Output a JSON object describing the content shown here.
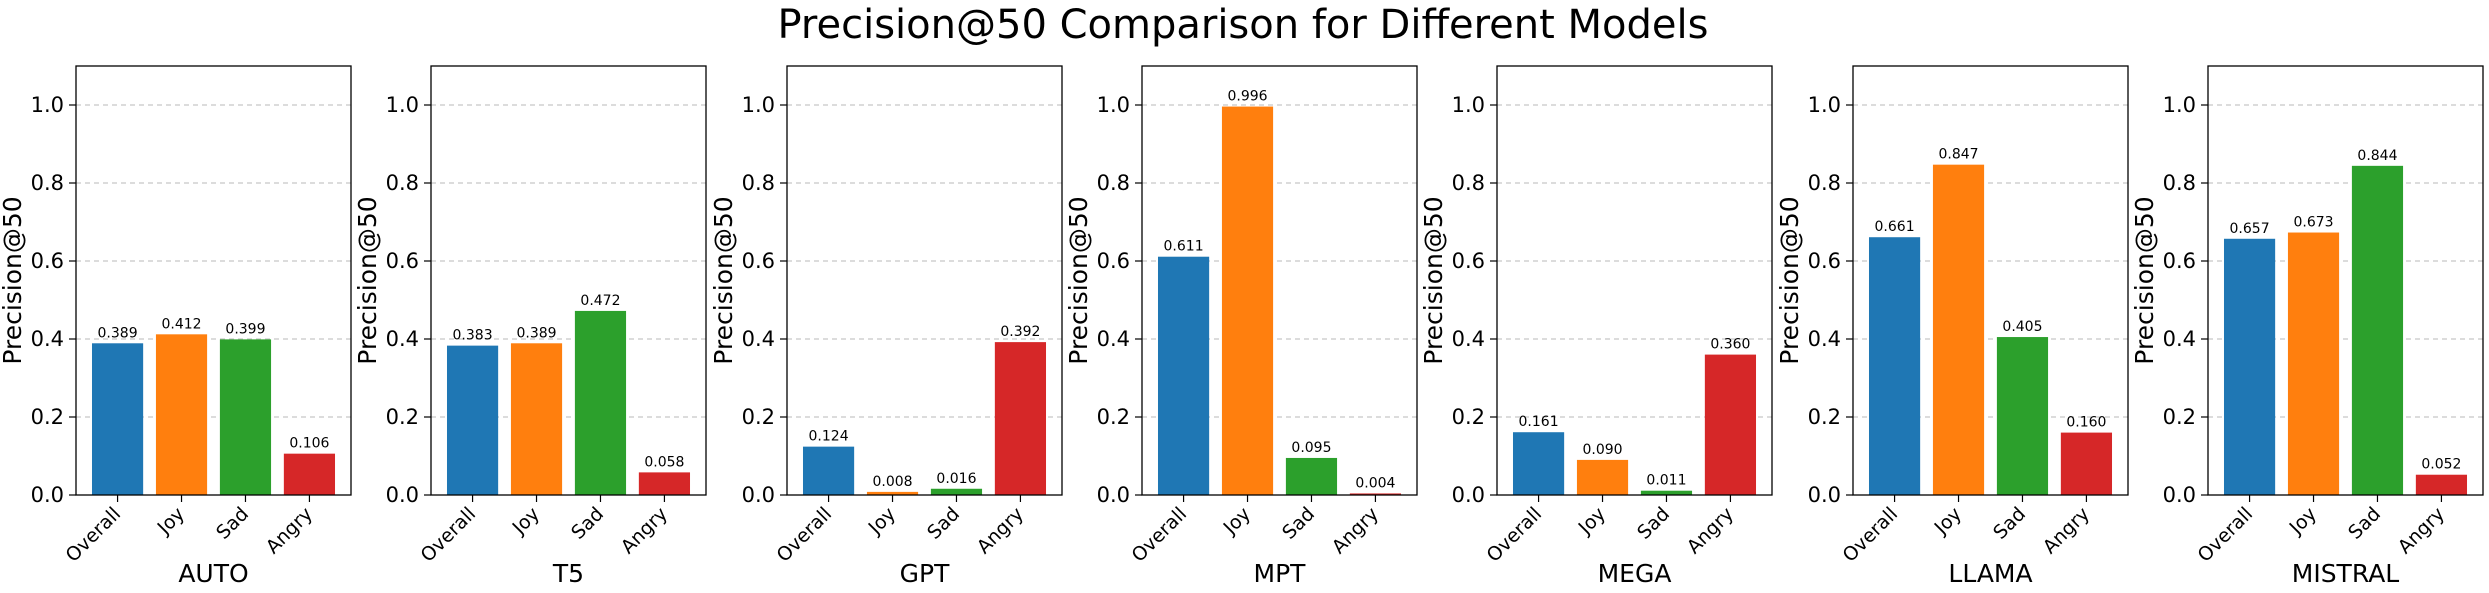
{
  "title": "Precision@50 Comparison for Different Models",
  "colors": {
    "Overall": "#1f77b4",
    "Joy": "#ff7f0e",
    "Sad": "#2ca02c",
    "Angry": "#d62728"
  },
  "chart_data": [
    {
      "type": "bar",
      "title": "",
      "xlabel": "AUTO",
      "ylabel": "Precision@50",
      "ylim": [
        0,
        1.1
      ],
      "yticks": [
        "0.0",
        "0.2",
        "0.4",
        "0.6",
        "0.8",
        "1.0"
      ],
      "grid": "y-dashed",
      "categories": [
        "Overall",
        "Joy",
        "Sad",
        "Angry"
      ],
      "values": [
        0.389,
        0.412,
        0.399,
        0.106
      ],
      "labels": [
        "0.389",
        "0.412",
        "0.399",
        "0.106"
      ]
    },
    {
      "type": "bar",
      "title": "",
      "xlabel": "T5",
      "ylabel": "Precision@50",
      "ylim": [
        0,
        1.1
      ],
      "yticks": [
        "0.0",
        "0.2",
        "0.4",
        "0.6",
        "0.8",
        "1.0"
      ],
      "grid": "y-dashed",
      "categories": [
        "Overall",
        "Joy",
        "Sad",
        "Angry"
      ],
      "values": [
        0.383,
        0.389,
        0.472,
        0.058
      ],
      "labels": [
        "0.383",
        "0.389",
        "0.472",
        "0.058"
      ]
    },
    {
      "type": "bar",
      "title": "",
      "xlabel": "GPT",
      "ylabel": "Precision@50",
      "ylim": [
        0,
        1.1
      ],
      "yticks": [
        "0.0",
        "0.2",
        "0.4",
        "0.6",
        "0.8",
        "1.0"
      ],
      "grid": "y-dashed",
      "categories": [
        "Overall",
        "Joy",
        "Sad",
        "Angry"
      ],
      "values": [
        0.124,
        0.008,
        0.016,
        0.392
      ],
      "labels": [
        "0.124",
        "0.008",
        "0.016",
        "0.392"
      ]
    },
    {
      "type": "bar",
      "title": "",
      "xlabel": "MPT",
      "ylabel": "Precision@50",
      "ylim": [
        0,
        1.1
      ],
      "yticks": [
        "0.0",
        "0.2",
        "0.4",
        "0.6",
        "0.8",
        "1.0"
      ],
      "grid": "y-dashed",
      "categories": [
        "Overall",
        "Joy",
        "Sad",
        "Angry"
      ],
      "values": [
        0.611,
        0.996,
        0.095,
        0.004
      ],
      "labels": [
        "0.611",
        "0.996",
        "0.095",
        "0.004"
      ]
    },
    {
      "type": "bar",
      "title": "",
      "xlabel": "MEGA",
      "ylabel": "Precision@50",
      "ylim": [
        0,
        1.1
      ],
      "yticks": [
        "0.0",
        "0.2",
        "0.4",
        "0.6",
        "0.8",
        "1.0"
      ],
      "grid": "y-dashed",
      "categories": [
        "Overall",
        "Joy",
        "Sad",
        "Angry"
      ],
      "values": [
        0.161,
        0.09,
        0.011,
        0.36
      ],
      "labels": [
        "0.161",
        "0.090",
        "0.011",
        "0.360"
      ]
    },
    {
      "type": "bar",
      "title": "",
      "xlabel": "LLAMA",
      "ylabel": "Precision@50",
      "ylim": [
        0,
        1.1
      ],
      "yticks": [
        "0.0",
        "0.2",
        "0.4",
        "0.6",
        "0.8",
        "1.0"
      ],
      "grid": "y-dashed",
      "categories": [
        "Overall",
        "Joy",
        "Sad",
        "Angry"
      ],
      "values": [
        0.661,
        0.847,
        0.405,
        0.16
      ],
      "labels": [
        "0.661",
        "0.847",
        "0.405",
        "0.160"
      ]
    },
    {
      "type": "bar",
      "title": "",
      "xlabel": "MISTRAL",
      "ylabel": "Precision@50",
      "ylim": [
        0,
        1.1
      ],
      "yticks": [
        "0.0",
        "0.2",
        "0.4",
        "0.6",
        "0.8",
        "1.0"
      ],
      "grid": "y-dashed",
      "categories": [
        "Overall",
        "Joy",
        "Sad",
        "Angry"
      ],
      "values": [
        0.657,
        0.673,
        0.844,
        0.052
      ],
      "labels": [
        "0.657",
        "0.673",
        "0.844",
        "0.052"
      ]
    }
  ]
}
